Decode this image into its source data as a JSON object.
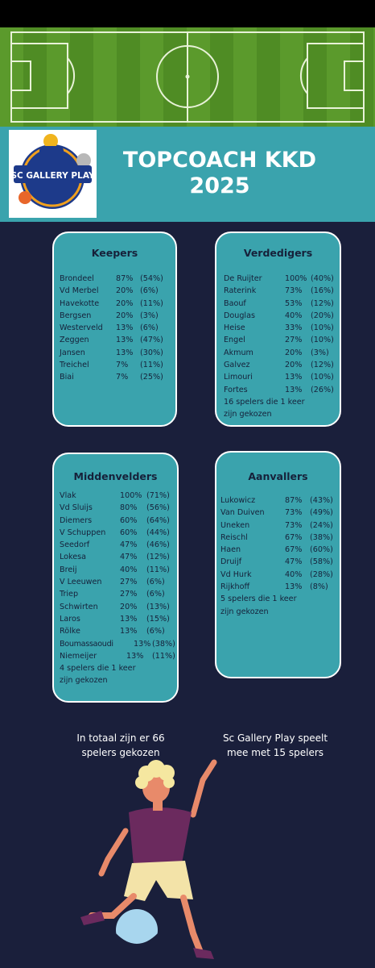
{
  "header": {
    "logo_text": "SC GALLERY PLAY",
    "title_line1": "TOPCOACH KKD",
    "title_line2": "2025"
  },
  "keepers": {
    "title": "Keepers",
    "players": [
      {
        "name": "Brondeel",
        "pct": "87%",
        "own": "(54%)"
      },
      {
        "name": "Vd Merbel",
        "pct": "20%",
        "own": "(6%)"
      },
      {
        "name": "Havekotte",
        "pct": "20%",
        "own": "(11%)"
      },
      {
        "name": "Bergsen",
        "pct": "20%",
        "own": "(3%)"
      },
      {
        "name": "Westerveld",
        "pct": "13%",
        "own": "(6%)"
      },
      {
        "name": "Zeggen",
        "pct": "13%",
        "own": "(47%)"
      },
      {
        "name": "Jansen",
        "pct": "13%",
        "own": "(30%)"
      },
      {
        "name": "Treichel",
        "pct": "7%",
        "own": "(11%)"
      },
      {
        "name": "Biai",
        "pct": "7%",
        "own": "(25%)"
      }
    ]
  },
  "verdedigers": {
    "title": "Verdedigers",
    "players": [
      {
        "name": "De Ruijter",
        "pct": "100%",
        "own": "(40%)"
      },
      {
        "name": "Raterink",
        "pct": "73%",
        "own": "(16%)"
      },
      {
        "name": "Baouf",
        "pct": "53%",
        "own": "(12%)"
      },
      {
        "name": "Douglas",
        "pct": "40%",
        "own": "(20%)"
      },
      {
        "name": "Heise",
        "pct": "33%",
        "own": "(10%)"
      },
      {
        "name": "Engel",
        "pct": "27%",
        "own": "(10%)"
      },
      {
        "name": "Akmum",
        "pct": "20%",
        "own": "(3%)"
      },
      {
        "name": "Galvez",
        "pct": "20%",
        "own": "(12%)"
      },
      {
        "name": "Limouri",
        "pct": "13%",
        "own": "(10%)"
      },
      {
        "name": "Fortes",
        "pct": "13%",
        "own": "(26%)"
      }
    ],
    "note_line1": "16 spelers die 1 keer",
    "note_line2": "zijn gekozen"
  },
  "middenvelders": {
    "title": "Middenvelders",
    "players": [
      {
        "name": "Vlak",
        "pct": "100%",
        "own": "(71%)"
      },
      {
        "name": "Vd Sluijs",
        "pct": "80%",
        "own": "(56%)"
      },
      {
        "name": "Diemers",
        "pct": "60%",
        "own": "(64%)"
      },
      {
        "name": "V Schuppen",
        "pct": "60%",
        "own": "(44%)"
      },
      {
        "name": "Seedorf",
        "pct": "47%",
        "own": "(46%)"
      },
      {
        "name": "Lokesa",
        "pct": "47%",
        "own": "(12%)"
      },
      {
        "name": "Breij",
        "pct": "40%",
        "own": "(11%)"
      },
      {
        "name": "V Leeuwen",
        "pct": "27%",
        "own": "(6%)"
      },
      {
        "name": "Triep",
        "pct": "27%",
        "own": "(6%)"
      },
      {
        "name": "Schwirten",
        "pct": "20%",
        "own": "(13%)"
      },
      {
        "name": "Laros",
        "pct": "13%",
        "own": "(15%)"
      },
      {
        "name": "Rölke",
        "pct": "13%",
        "own": "(6%)"
      },
      {
        "name": "Boumassaoudi",
        "pct": "13%",
        "own": "(38%)"
      },
      {
        "name": "Niemeijer",
        "pct": "13%",
        "own": "(11%)"
      }
    ],
    "note_line1": "4 spelers die 1 keer",
    "note_line2": "zijn gekozen"
  },
  "aanvallers": {
    "title": "Aanvallers",
    "players": [
      {
        "name": "Lukowicz",
        "pct": "87%",
        "own": "(43%)"
      },
      {
        "name": "Van Duiven",
        "pct": "73%",
        "own": "(49%)"
      },
      {
        "name": "Uneken",
        "pct": "73%",
        "own": "(24%)"
      },
      {
        "name": "Reischl",
        "pct": "67%",
        "own": "(38%)"
      },
      {
        "name": "Haen",
        "pct": "67%",
        "own": "(60%)"
      },
      {
        "name": "Druijf",
        "pct": "47%",
        "own": "(58%)"
      },
      {
        "name": "Vd Hurk",
        "pct": "40%",
        "own": "(28%)"
      },
      {
        "name": "Rijkhoff",
        "pct": "13%",
        "own": "(8%)"
      }
    ],
    "note_line1": "5 spelers die 1 keer",
    "note_line2": "zijn gekozen"
  },
  "footer": {
    "left_line1": "In totaal zijn er 66",
    "left_line2": "spelers gekozen",
    "right_line1": "Sc Gallery Play speelt",
    "right_line2": "mee met 15 spelers"
  },
  "colors": {
    "background": "#1a1f3b",
    "card": "#3aa3ad",
    "text_dark": "#16213a",
    "pitch_green": "#5b9a2c"
  }
}
